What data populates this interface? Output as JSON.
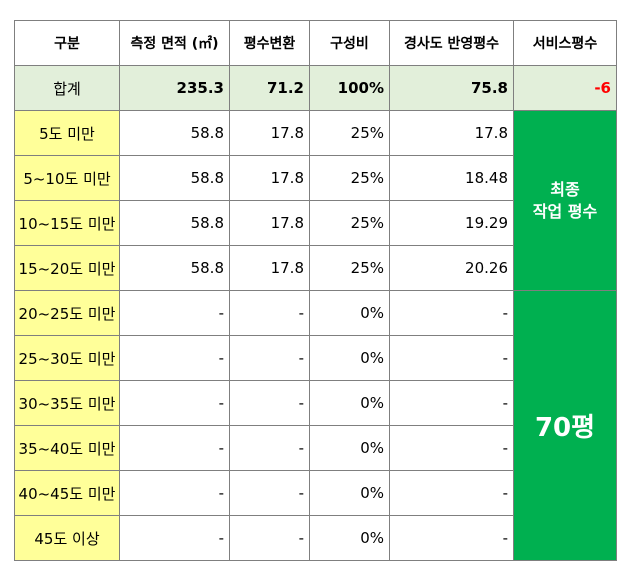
{
  "headers": [
    "구분",
    "측정 면적 (㎡)",
    "평수변환",
    "구성비",
    "경사도 반영평수",
    "서비스평수"
  ],
  "total": {
    "label": "합계",
    "area": "235.3",
    "pyeong": "71.2",
    "ratio": "100%",
    "adjusted": "75.8",
    "service": "-6"
  },
  "rows": [
    {
      "label": "5도 미만",
      "area": "58.8",
      "pyeong": "17.8",
      "ratio": "25%",
      "adjusted": "17.8"
    },
    {
      "label": "5~10도 미만",
      "area": "58.8",
      "pyeong": "17.8",
      "ratio": "25%",
      "adjusted": "18.48"
    },
    {
      "label": "10~15도 미만",
      "area": "58.8",
      "pyeong": "17.8",
      "ratio": "25%",
      "adjusted": "19.29"
    },
    {
      "label": "15~20도 미만",
      "area": "58.8",
      "pyeong": "17.8",
      "ratio": "25%",
      "adjusted": "20.26"
    },
    {
      "label": "20~25도 미만",
      "area": "-",
      "pyeong": "-",
      "ratio": "0%",
      "adjusted": "-"
    },
    {
      "label": "25~30도 미만",
      "area": "-",
      "pyeong": "-",
      "ratio": "0%",
      "adjusted": "-"
    },
    {
      "label": "30~35도 미만",
      "area": "-",
      "pyeong": "-",
      "ratio": "0%",
      "adjusted": "-"
    },
    {
      "label": "35~40도 미만",
      "area": "-",
      "pyeong": "-",
      "ratio": "0%",
      "adjusted": "-"
    },
    {
      "label": "40~45도 미만",
      "area": "-",
      "pyeong": "-",
      "ratio": "0%",
      "adjusted": "-"
    },
    {
      "label": "45도 이상",
      "area": "-",
      "pyeong": "-",
      "ratio": "0%",
      "adjusted": "-"
    }
  ],
  "final_work_label_line1": "최종",
  "final_work_label_line2": "작업 평수",
  "final_pyeong": "70평",
  "colors": {
    "total_bg": "#e2efda",
    "label_bg": "#ffff99",
    "green": "#00b050",
    "negative": "#ff0000"
  }
}
